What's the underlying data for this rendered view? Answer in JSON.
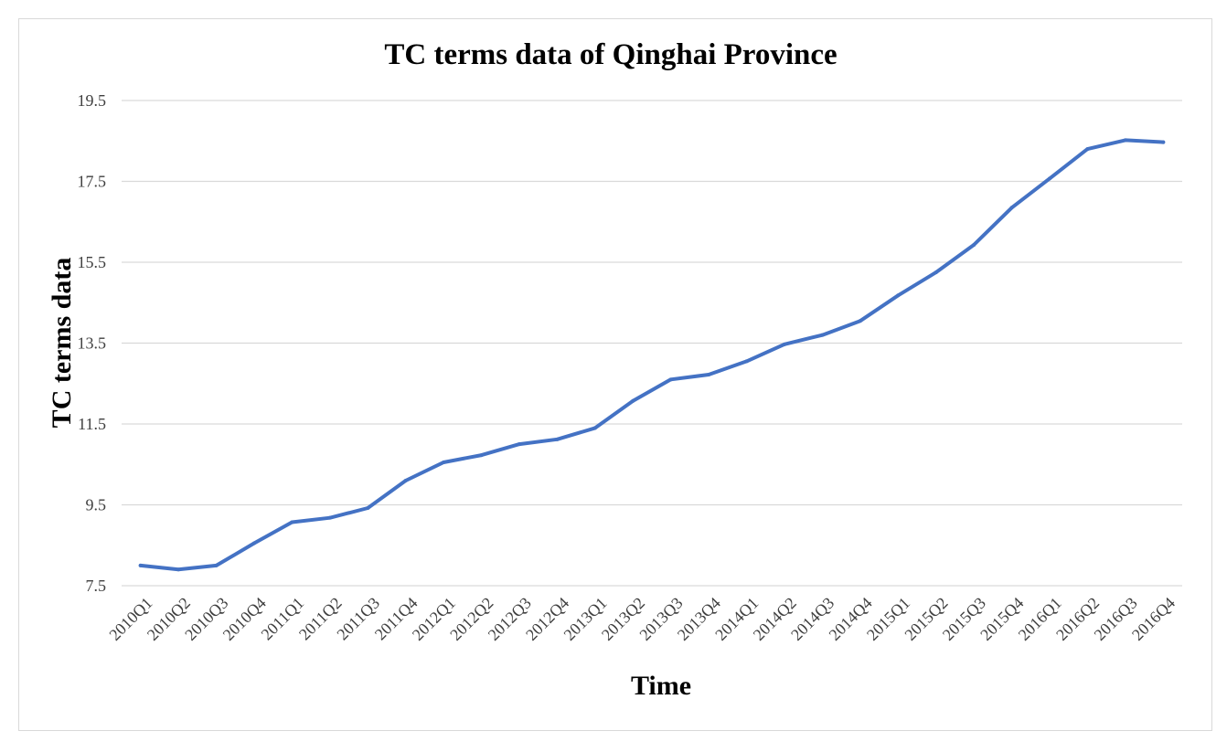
{
  "chart_data": {
    "type": "line",
    "title": "TC terms data of Qinghai Province",
    "xlabel": "Time",
    "ylabel": "TC terms data",
    "ylim": [
      7.5,
      19.5
    ],
    "yticks": [
      "7.5",
      "9.5",
      "11.5",
      "13.5",
      "15.5",
      "17.5",
      "19.5"
    ],
    "grid": true,
    "line_color": "#4472c4",
    "categories": [
      "2010Q1",
      "2010Q2",
      "2010Q3",
      "2010Q4",
      "2011Q1",
      "2011Q2",
      "2011Q3",
      "2011Q4",
      "2012Q1",
      "2012Q2",
      "2012Q3",
      "2012Q4",
      "2013Q1",
      "2013Q2",
      "2013Q3",
      "2013Q4",
      "2014Q1",
      "2014Q2",
      "2014Q3",
      "2014Q4",
      "2015Q1",
      "2015Q2",
      "2015Q3",
      "2015Q4",
      "2016Q1",
      "2016Q2",
      "2016Q3",
      "2016Q4"
    ],
    "series": [
      {
        "values": [
          8.0,
          7.9,
          8.0,
          8.55,
          9.07,
          9.18,
          9.42,
          10.1,
          10.55,
          10.73,
          11.0,
          11.12,
          11.4,
          12.07,
          12.6,
          12.72,
          13.05,
          13.47,
          13.7,
          14.05,
          14.68,
          15.25,
          15.93,
          16.85,
          17.57,
          18.3,
          18.52,
          18.47
        ]
      }
    ]
  }
}
